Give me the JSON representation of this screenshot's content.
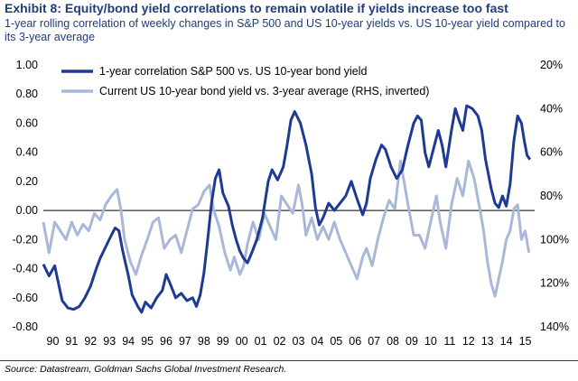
{
  "header": {
    "title": "Exhibit 8: Equity/bond yield correlations to remain volatile if yields increase too fast",
    "subtitle": "1-year rolling correlation of weekly changes in S&P 500 and US 10-year yields vs. US 10-year yield compared to its 3-year average"
  },
  "footer": {
    "source": "Source: Datastream, Goldman Sachs Global Investment Research."
  },
  "colors": {
    "series1": "#1f3a93",
    "series2": "#a9b8d8",
    "accent": "#1f3d7a"
  },
  "chart_data": {
    "type": "line",
    "title": "Exhibit 8: Equity/bond yield correlations to remain volatile if yields increase too fast",
    "x_ticks": [
      "90",
      "91",
      "92",
      "93",
      "94",
      "95",
      "96",
      "97",
      "98",
      "99",
      "00",
      "01",
      "02",
      "03",
      "04",
      "05",
      "06",
      "07",
      "08",
      "09",
      "10",
      "11",
      "12",
      "13",
      "14",
      "15"
    ],
    "x_range": [
      1990.0,
      2016.0
    ],
    "y_left": {
      "range": [
        -0.8,
        1.0
      ],
      "ticks": [
        "1.00",
        "0.80",
        "0.60",
        "0.40",
        "0.20",
        "0.00",
        "-0.20",
        "-0.40",
        "-0.60",
        "-0.80"
      ],
      "tick_values": [
        1.0,
        0.8,
        0.6,
        0.4,
        0.2,
        0.0,
        -0.2,
        -0.4,
        -0.6,
        -0.8
      ]
    },
    "y_right": {
      "range_top": 20,
      "range_bottom": 140,
      "inverted": true,
      "unit": "%",
      "ticks": [
        "20%",
        "40%",
        "60%",
        "80%",
        "100%",
        "120%",
        "140%"
      ],
      "tick_values": [
        20,
        40,
        60,
        80,
        100,
        120,
        140
      ]
    },
    "legend_position": "top-left",
    "series": [
      {
        "name": "1-year correlation S&P 500 vs. US 10-year bond yield",
        "axis": "left",
        "points": [
          [
            1990.0,
            -0.37
          ],
          [
            1990.3,
            -0.45
          ],
          [
            1990.6,
            -0.38
          ],
          [
            1990.8,
            -0.5
          ],
          [
            1991.0,
            -0.62
          ],
          [
            1991.3,
            -0.67
          ],
          [
            1991.6,
            -0.68
          ],
          [
            1991.9,
            -0.66
          ],
          [
            1992.2,
            -0.6
          ],
          [
            1992.5,
            -0.52
          ],
          [
            1992.8,
            -0.4
          ],
          [
            1993.0,
            -0.33
          ],
          [
            1993.3,
            -0.25
          ],
          [
            1993.6,
            -0.17
          ],
          [
            1993.8,
            -0.12
          ],
          [
            1994.0,
            -0.14
          ],
          [
            1994.2,
            -0.28
          ],
          [
            1994.5,
            -0.45
          ],
          [
            1994.7,
            -0.58
          ],
          [
            1995.0,
            -0.66
          ],
          [
            1995.2,
            -0.7
          ],
          [
            1995.4,
            -0.63
          ],
          [
            1995.7,
            -0.67
          ],
          [
            1996.0,
            -0.6
          ],
          [
            1996.3,
            -0.55
          ],
          [
            1996.5,
            -0.44
          ],
          [
            1996.7,
            -0.5
          ],
          [
            1997.0,
            -0.6
          ],
          [
            1997.3,
            -0.57
          ],
          [
            1997.6,
            -0.62
          ],
          [
            1997.9,
            -0.6
          ],
          [
            1998.1,
            -0.66
          ],
          [
            1998.3,
            -0.58
          ],
          [
            1998.5,
            -0.43
          ],
          [
            1998.7,
            -0.2
          ],
          [
            1998.9,
            0.05
          ],
          [
            1999.1,
            0.22
          ],
          [
            1999.3,
            0.28
          ],
          [
            1999.5,
            0.12
          ],
          [
            1999.8,
            0.03
          ],
          [
            2000.0,
            -0.1
          ],
          [
            2000.2,
            -0.2
          ],
          [
            2000.4,
            -0.28
          ],
          [
            2000.6,
            -0.33
          ],
          [
            2000.8,
            -0.36
          ],
          [
            2001.0,
            -0.3
          ],
          [
            2001.3,
            -0.2
          ],
          [
            2001.6,
            -0.05
          ],
          [
            2001.9,
            0.2
          ],
          [
            2002.1,
            0.28
          ],
          [
            2002.4,
            0.21
          ],
          [
            2002.7,
            0.3
          ],
          [
            2002.9,
            0.45
          ],
          [
            2003.1,
            0.62
          ],
          [
            2003.3,
            0.68
          ],
          [
            2003.6,
            0.6
          ],
          [
            2003.9,
            0.45
          ],
          [
            2004.2,
            0.25
          ],
          [
            2004.4,
            0.02
          ],
          [
            2004.6,
            -0.1
          ],
          [
            2004.8,
            -0.05
          ],
          [
            2005.1,
            0.05
          ],
          [
            2005.4,
            0.0
          ],
          [
            2005.7,
            0.05
          ],
          [
            2006.0,
            0.1
          ],
          [
            2006.3,
            0.2
          ],
          [
            2006.6,
            0.08
          ],
          [
            2006.9,
            -0.03
          ],
          [
            2007.1,
            0.05
          ],
          [
            2007.3,
            0.22
          ],
          [
            2007.6,
            0.35
          ],
          [
            2007.9,
            0.45
          ],
          [
            2008.1,
            0.42
          ],
          [
            2008.4,
            0.3
          ],
          [
            2008.7,
            0.22
          ],
          [
            2009.0,
            0.28
          ],
          [
            2009.3,
            0.45
          ],
          [
            2009.6,
            0.6
          ],
          [
            2009.8,
            0.65
          ],
          [
            2010.0,
            0.62
          ],
          [
            2010.2,
            0.4
          ],
          [
            2010.4,
            0.3
          ],
          [
            2010.7,
            0.45
          ],
          [
            2010.9,
            0.55
          ],
          [
            2011.1,
            0.45
          ],
          [
            2011.3,
            0.3
          ],
          [
            2011.6,
            0.55
          ],
          [
            2011.8,
            0.7
          ],
          [
            2012.0,
            0.62
          ],
          [
            2012.2,
            0.55
          ],
          [
            2012.4,
            0.72
          ],
          [
            2012.7,
            0.7
          ],
          [
            2013.0,
            0.65
          ],
          [
            2013.2,
            0.55
          ],
          [
            2013.4,
            0.35
          ],
          [
            2013.7,
            0.15
          ],
          [
            2013.9,
            0.05
          ],
          [
            2014.1,
            0.02
          ],
          [
            2014.3,
            0.1
          ],
          [
            2014.5,
            0.03
          ],
          [
            2014.7,
            0.18
          ],
          [
            2014.9,
            0.48
          ],
          [
            2015.1,
            0.65
          ],
          [
            2015.3,
            0.6
          ],
          [
            2015.45,
            0.48
          ],
          [
            2015.6,
            0.38
          ],
          [
            2015.75,
            0.35
          ]
        ]
      },
      {
        "name": "Current US 10-year bond yield vs. 3-year average (RHS, inverted)",
        "axis": "right",
        "points": [
          [
            1990.0,
            92
          ],
          [
            1990.3,
            106
          ],
          [
            1990.6,
            92
          ],
          [
            1990.9,
            96
          ],
          [
            1991.2,
            100
          ],
          [
            1991.5,
            92
          ],
          [
            1991.8,
            98
          ],
          [
            1992.1,
            93
          ],
          [
            1992.4,
            96
          ],
          [
            1992.7,
            88
          ],
          [
            1993.0,
            91
          ],
          [
            1993.3,
            84
          ],
          [
            1993.6,
            80
          ],
          [
            1993.9,
            77
          ],
          [
            1994.1,
            86
          ],
          [
            1994.3,
            100
          ],
          [
            1994.6,
            110
          ],
          [
            1994.9,
            116
          ],
          [
            1995.2,
            107
          ],
          [
            1995.5,
            100
          ],
          [
            1995.8,
            92
          ],
          [
            1996.1,
            90
          ],
          [
            1996.4,
            104
          ],
          [
            1996.7,
            100
          ],
          [
            1997.0,
            98
          ],
          [
            1997.3,
            106
          ],
          [
            1997.6,
            96
          ],
          [
            1997.9,
            86
          ],
          [
            1998.2,
            84
          ],
          [
            1998.5,
            78
          ],
          [
            1998.8,
            75
          ],
          [
            1999.0,
            86
          ],
          [
            1999.3,
            94
          ],
          [
            1999.6,
            106
          ],
          [
            1999.9,
            114
          ],
          [
            2000.1,
            108
          ],
          [
            2000.4,
            116
          ],
          [
            2000.6,
            112
          ],
          [
            2000.8,
            102
          ],
          [
            2001.1,
            92
          ],
          [
            2001.4,
            100
          ],
          [
            2001.7,
            88
          ],
          [
            2002.0,
            94
          ],
          [
            2002.3,
            100
          ],
          [
            2002.6,
            80
          ],
          [
            2002.9,
            84
          ],
          [
            2003.2,
            88
          ],
          [
            2003.5,
            75
          ],
          [
            2003.7,
            84
          ],
          [
            2003.9,
            98
          ],
          [
            2004.2,
            90
          ],
          [
            2004.5,
            100
          ],
          [
            2004.8,
            94
          ],
          [
            2005.1,
            100
          ],
          [
            2005.4,
            92
          ],
          [
            2005.7,
            100
          ],
          [
            2006.0,
            106
          ],
          [
            2006.3,
            112
          ],
          [
            2006.6,
            118
          ],
          [
            2006.9,
            108
          ],
          [
            2007.1,
            104
          ],
          [
            2007.4,
            112
          ],
          [
            2007.7,
            100
          ],
          [
            2008.0,
            90
          ],
          [
            2008.3,
            82
          ],
          [
            2008.6,
            86
          ],
          [
            2008.9,
            64
          ],
          [
            2009.1,
            74
          ],
          [
            2009.3,
            84
          ],
          [
            2009.6,
            98
          ],
          [
            2009.9,
            98
          ],
          [
            2010.2,
            104
          ],
          [
            2010.5,
            92
          ],
          [
            2010.8,
            80
          ],
          [
            2011.0,
            92
          ],
          [
            2011.3,
            104
          ],
          [
            2011.6,
            84
          ],
          [
            2011.9,
            72
          ],
          [
            2012.2,
            80
          ],
          [
            2012.5,
            64
          ],
          [
            2012.8,
            72
          ],
          [
            2013.1,
            86
          ],
          [
            2013.3,
            96
          ],
          [
            2013.5,
            110
          ],
          [
            2013.7,
            120
          ],
          [
            2013.9,
            126
          ],
          [
            2014.1,
            118
          ],
          [
            2014.3,
            110
          ],
          [
            2014.5,
            100
          ],
          [
            2014.7,
            96
          ],
          [
            2014.9,
            86
          ],
          [
            2015.1,
            84
          ],
          [
            2015.3,
            100
          ],
          [
            2015.5,
            96
          ],
          [
            2015.7,
            106
          ]
        ]
      }
    ]
  }
}
